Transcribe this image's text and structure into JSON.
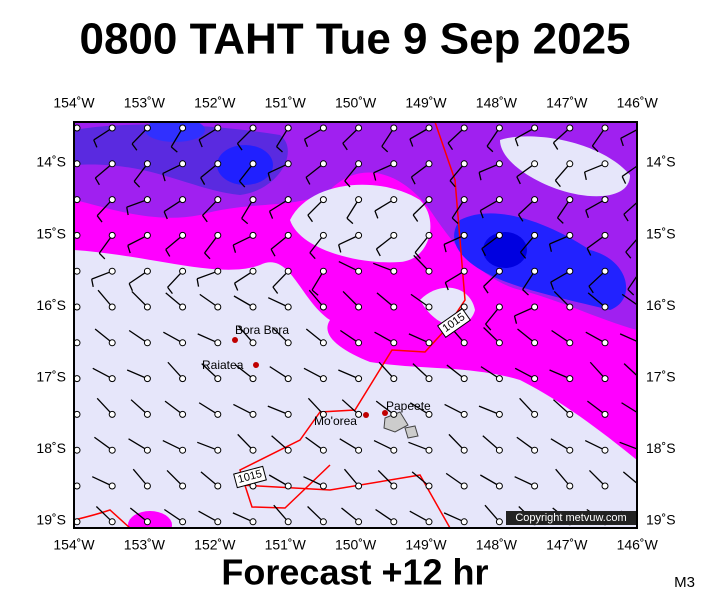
{
  "header": {
    "title": "0800 TAHT Tue 9 Sep 2025"
  },
  "map": {
    "lon_labels": [
      "154˚W",
      "153˚W",
      "152˚W",
      "151˚W",
      "150˚W",
      "149˚W",
      "148˚W",
      "147˚W",
      "146˚W"
    ],
    "lat_labels": [
      "14˚S",
      "15˚S",
      "16˚S",
      "17˚S",
      "18˚S",
      "19˚S"
    ],
    "places": [
      "Bora Bora",
      "Raiatea",
      "Mo'orea",
      "Papeete"
    ],
    "isobar_labels": [
      "1015",
      "1015"
    ],
    "copyright": "Copyright metvuw.com"
  },
  "footer": {
    "subtitle": "Forecast +12 hr",
    "code": "M3"
  }
}
